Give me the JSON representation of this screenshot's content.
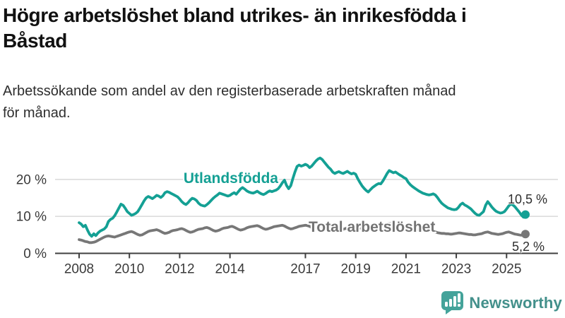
{
  "page": {
    "title": "Högre arbetslöshet bland utrikes- än inrikesfödda i Båstad",
    "title_lines": [
      "Högre arbetslöshet bland utrikes- än inrikesfödda i",
      "Båstad"
    ],
    "subtitle": "Arbetssökande som andel av den registerbaserade arbetskraften månad för månad.",
    "subtitle_lines": [
      "Arbetssökande som andel av den registerbaserade arbetskraften månad",
      "för månad."
    ]
  },
  "colors": {
    "foreign_line": "#14a094",
    "total_line": "#777777",
    "grid": "#dcdcdc",
    "axis": "#3f3f3f",
    "tick_text": "#3a3a3a",
    "brand_icon": "#44a39a",
    "brand_text": "#43908b"
  },
  "chart_data": {
    "type": "line",
    "unit": "%",
    "x_unit": "month",
    "x_range": [
      "2008-01",
      "2025-10"
    ],
    "x_ticks": [
      2008,
      2010,
      2012,
      2014,
      2017,
      2019,
      2021,
      2023,
      2025
    ],
    "y_ticks": [
      0,
      10,
      20
    ],
    "y_tick_labels": [
      "0 %",
      "10 %",
      "20 %"
    ],
    "ylim": [
      0,
      27
    ],
    "grid": "horizontal",
    "legend_position": "inline-labels",
    "series": [
      {
        "name": "Utlandsfödda",
        "color": "#14a094",
        "end_value": 10.5,
        "end_label": "10,5 %",
        "values": [
          8.3,
          7.9,
          7.2,
          7.6,
          6.3,
          5.2,
          4.6,
          5.3,
          4.8,
          5.5,
          6.0,
          6.3,
          6.6,
          7.2,
          8.6,
          9.2,
          9.5,
          10.2,
          11.2,
          12.3,
          13.3,
          13.0,
          12.2,
          11.3,
          10.8,
          10.3,
          10.5,
          10.8,
          11.3,
          12.2,
          13.2,
          14.2,
          15.0,
          15.4,
          15.1,
          14.8,
          15.2,
          15.7,
          15.5,
          15.1,
          15.6,
          16.4,
          16.7,
          16.5,
          16.2,
          15.9,
          15.6,
          15.3,
          14.7,
          14.0,
          13.5,
          13.2,
          13.7,
          14.4,
          14.9,
          14.7,
          14.3,
          13.6,
          13.1,
          12.9,
          12.8,
          13.2,
          13.7,
          14.3,
          14.9,
          15.4,
          15.8,
          16.3,
          16.1,
          15.9,
          15.7,
          15.5,
          15.7,
          16.1,
          16.4,
          16.0,
          16.7,
          17.4,
          17.8,
          17.4,
          16.9,
          16.6,
          16.4,
          16.3,
          16.5,
          16.8,
          16.4,
          16.1,
          15.9,
          16.2,
          16.6,
          16.9,
          16.7,
          16.9,
          17.1,
          17.5,
          18.2,
          19.1,
          19.8,
          18.4,
          17.5,
          18.3,
          20.2,
          22.0,
          23.5,
          23.9,
          23.6,
          23.8,
          24.1,
          23.8,
          23.2,
          23.6,
          24.3,
          25.0,
          25.5,
          25.8,
          25.4,
          24.7,
          24.0,
          23.3,
          22.8,
          22.0,
          21.6,
          21.9,
          22.1,
          21.8,
          21.6,
          21.9,
          22.2,
          21.8,
          21.5,
          21.7,
          21.4,
          20.2,
          19.2,
          18.3,
          17.6,
          17.0,
          16.6,
          17.2,
          17.8,
          18.2,
          18.6,
          18.9,
          18.8,
          19.6,
          20.6,
          21.6,
          22.4,
          22.1,
          21.8,
          22.0,
          21.6,
          21.2,
          20.9,
          20.5,
          20.2,
          19.3,
          18.6,
          18.1,
          17.7,
          17.3,
          16.9,
          16.6,
          16.3,
          16.1,
          15.9,
          15.8,
          15.9,
          16.1,
          15.8,
          15.1,
          14.3,
          13.6,
          13.1,
          12.7,
          12.3,
          12.1,
          11.9,
          11.8,
          11.9,
          12.4,
          13.2,
          13.6,
          13.1,
          12.8,
          12.4,
          12.0,
          11.4,
          10.8,
          10.4,
          10.3,
          10.8,
          11.3,
          13.0,
          14.0,
          13.3,
          12.5,
          11.9,
          11.4,
          11.1,
          10.9,
          11.0,
          11.3,
          12.0,
          12.8,
          13.3,
          13.1,
          12.6,
          11.9,
          11.2,
          10.4,
          9.8,
          10.5
        ]
      },
      {
        "name": "Total arbetslöshet",
        "color": "#777777",
        "end_value": 5.2,
        "end_label": "5,2 %",
        "values": [
          3.7,
          3.6,
          3.4,
          3.2,
          3.1,
          2.9,
          2.9,
          3.0,
          3.2,
          3.5,
          3.8,
          4.1,
          4.4,
          4.6,
          4.7,
          4.6,
          4.5,
          4.4,
          4.6,
          4.8,
          5.0,
          5.2,
          5.4,
          5.6,
          5.8,
          5.9,
          5.7,
          5.4,
          5.1,
          4.9,
          5.0,
          5.3,
          5.6,
          5.9,
          6.1,
          6.2,
          6.3,
          6.4,
          6.2,
          5.9,
          5.6,
          5.4,
          5.5,
          5.7,
          6.0,
          6.2,
          6.3,
          6.4,
          6.6,
          6.7,
          6.5,
          6.2,
          5.9,
          5.7,
          5.8,
          6.0,
          6.3,
          6.5,
          6.6,
          6.7,
          6.9,
          7.0,
          6.8,
          6.5,
          6.2,
          6.0,
          6.1,
          6.3,
          6.6,
          6.8,
          6.9,
          7.0,
          7.2,
          7.3,
          7.1,
          6.8,
          6.5,
          6.3,
          6.4,
          6.6,
          6.9,
          7.1,
          7.2,
          7.3,
          7.4,
          7.5,
          7.3,
          7.0,
          6.7,
          6.5,
          6.6,
          6.8,
          7.0,
          7.2,
          7.3,
          7.4,
          7.5,
          7.6,
          7.4,
          7.1,
          6.8,
          6.6,
          6.7,
          6.9,
          7.1,
          7.3,
          7.4,
          7.5,
          7.6,
          7.5,
          7.3,
          7.0,
          6.8,
          6.6,
          6.7,
          6.9,
          7.1,
          7.2,
          7.3,
          7.4,
          7.4,
          7.3,
          7.1,
          6.8,
          6.6,
          6.4,
          6.5,
          6.7,
          6.9,
          7.0,
          7.1,
          7.2,
          7.2,
          7.1,
          6.9,
          6.7,
          6.5,
          6.4,
          6.5,
          6.7,
          6.9,
          7.0,
          7.1,
          7.2,
          7.3,
          7.4,
          7.7,
          8.0,
          8.1,
          8.0,
          7.9,
          7.9,
          7.8,
          7.6,
          7.5,
          7.4,
          7.4,
          7.3,
          7.1,
          6.9,
          6.7,
          6.5,
          6.4,
          6.3,
          6.2,
          6.1,
          6.1,
          6.0,
          6.0,
          5.9,
          5.8,
          5.6,
          5.5,
          5.4,
          5.4,
          5.3,
          5.3,
          5.2,
          5.2,
          5.3,
          5.4,
          5.5,
          5.5,
          5.4,
          5.3,
          5.2,
          5.1,
          5.1,
          5.0,
          5.0,
          5.1,
          5.2,
          5.3,
          5.5,
          5.7,
          5.8,
          5.6,
          5.4,
          5.3,
          5.2,
          5.1,
          5.2,
          5.3,
          5.5,
          5.7,
          5.8,
          5.6,
          5.4,
          5.2,
          5.1,
          5.0,
          4.9,
          5.0,
          5.2
        ]
      }
    ]
  },
  "logo": {
    "text": "Newsworthy",
    "icon": "bar-chart-speech-bubble-icon"
  }
}
